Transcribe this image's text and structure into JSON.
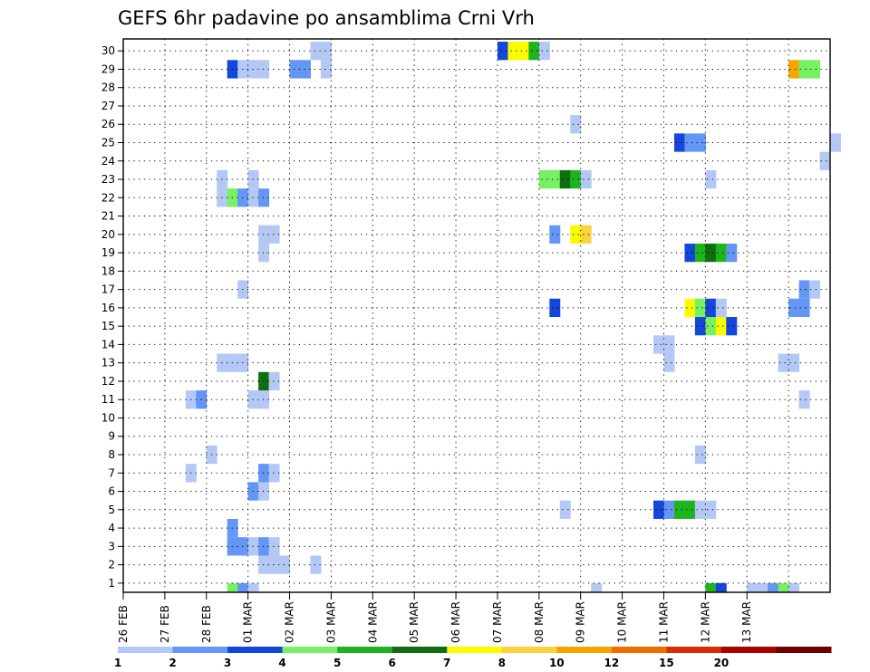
{
  "chart_data": {
    "type": "heatmap",
    "title": "GEFS 6hr padavine po ansamblima Crni Vrh",
    "xlabel": "",
    "ylabel": "",
    "x_ticks": [
      "26 FEB",
      "27 FEB",
      "28 FEB",
      "01 MAR",
      "02 MAR",
      "03 MAR",
      "04 MAR",
      "05 MAR",
      "06 MAR",
      "07 MAR",
      "08 MAR",
      "09 MAR",
      "10 MAR",
      "11 MAR",
      "12 MAR",
      "13 MAR"
    ],
    "y_ticks": [
      "1",
      "2",
      "3",
      "4",
      "5",
      "6",
      "7",
      "8",
      "9",
      "10",
      "11",
      "12",
      "13",
      "14",
      "15",
      "16",
      "17",
      "18",
      "19",
      "20",
      "21",
      "22",
      "23",
      "24",
      "25",
      "26",
      "27",
      "28",
      "29",
      "30"
    ],
    "grid": true,
    "legend": {
      "labels": [
        "1",
        "2",
        "3",
        "4",
        "5",
        "6",
        "7",
        "8",
        "10",
        "12",
        "15",
        "20"
      ],
      "colors": [
        "#b4c8f5",
        "#6496f5",
        "#1446dc",
        "#78f064",
        "#1eb41e",
        "#0f6e0f",
        "#fafa00",
        "#fad23c",
        "#f5a500",
        "#f06e00",
        "#dc2d00",
        "#aa0000",
        "#6e0000"
      ]
    },
    "cells": [
      [
        28.5,
        0,
        3,
        "#78f064"
      ],
      [
        28.75,
        0,
        3,
        "#6496f5"
      ],
      [
        29.0,
        0,
        3,
        "#b4c8f5"
      ],
      [
        29.25,
        1,
        2,
        "#b4c8f5"
      ],
      [
        29.5,
        1,
        2,
        "#b4c8f5"
      ],
      [
        29.75,
        1,
        2,
        "#b4c8f5"
      ],
      [
        30.5,
        1,
        2,
        "#b4c8f5"
      ],
      [
        28.5,
        2,
        2,
        "#6496f5"
      ],
      [
        28.75,
        2,
        2,
        "#6496f5"
      ],
      [
        29.0,
        2,
        2,
        "#b4c8f5"
      ],
      [
        29.25,
        2,
        2,
        "#6496f5"
      ],
      [
        29.5,
        2,
        2,
        "#b4c8f5"
      ],
      [
        28.5,
        3,
        2,
        "#6496f5"
      ],
      [
        38.75,
        4,
        3,
        "#1446dc"
      ],
      [
        39.0,
        4,
        3,
        "#6496f5"
      ],
      [
        39.25,
        4,
        3,
        "#1eb41e"
      ],
      [
        39.5,
        4,
        3,
        "#1eb41e"
      ],
      [
        39.75,
        4,
        3,
        "#b4c8f5"
      ],
      [
        40.0,
        4,
        3,
        "#b4c8f5"
      ],
      [
        36.5,
        4,
        3,
        "#b4c8f5"
      ],
      [
        29.0,
        5,
        2,
        "#6496f5"
      ],
      [
        29.25,
        5,
        2,
        "#b4c8f5"
      ],
      [
        27.5,
        6,
        2,
        "#b4c8f5"
      ],
      [
        29.25,
        6,
        2,
        "#6496f5"
      ],
      [
        29.5,
        6,
        2,
        "#b4c8f5"
      ],
      [
        28.0,
        7,
        2,
        "#b4c8f5"
      ],
      [
        39.75,
        7,
        2,
        "#b4c8f5"
      ],
      [
        27.5,
        10,
        2,
        "#b4c8f5"
      ],
      [
        27.75,
        10,
        2,
        "#6496f5"
      ],
      [
        29.0,
        10,
        2,
        "#b4c8f5"
      ],
      [
        29.25,
        10,
        2,
        "#b4c8f5"
      ],
      [
        42.25,
        10,
        2,
        "#b4c8f5"
      ],
      [
        29.25,
        11,
        2,
        "#0f6e0f"
      ],
      [
        29.5,
        11,
        2,
        "#b4c8f5"
      ],
      [
        28.25,
        12,
        2,
        "#b4c8f5"
      ],
      [
        28.5,
        12,
        2,
        "#b4c8f5"
      ],
      [
        28.75,
        12,
        2,
        "#b4c8f5"
      ],
      [
        39.0,
        12,
        2,
        "#b4c8f5"
      ],
      [
        41.75,
        12,
        2,
        "#b4c8f5"
      ],
      [
        42.0,
        12,
        2,
        "#b4c8f5"
      ],
      [
        38.75,
        13,
        3,
        "#b4c8f5"
      ],
      [
        39.0,
        13,
        3,
        "#b4c8f5"
      ],
      [
        39.75,
        14,
        2,
        "#1446dc"
      ],
      [
        40.0,
        14,
        2,
        "#78f064"
      ],
      [
        40.25,
        14,
        2,
        "#fafa00"
      ],
      [
        40.5,
        14,
        2,
        "#1446dc"
      ],
      [
        36.25,
        15,
        2,
        "#1446dc"
      ],
      [
        39.5,
        15,
        2,
        "#fafa00"
      ],
      [
        39.75,
        15,
        2,
        "#78f064"
      ],
      [
        40.0,
        15,
        2,
        "#1446dc"
      ],
      [
        40.25,
        15,
        2,
        "#b4c8f5"
      ],
      [
        42.0,
        15,
        2,
        "#6496f5"
      ],
      [
        42.25,
        15,
        2,
        "#6496f5"
      ],
      [
        28.75,
        16,
        2,
        "#b4c8f5"
      ],
      [
        42.25,
        16,
        2,
        "#6496f5"
      ],
      [
        42.5,
        16,
        2,
        "#b4c8f5"
      ],
      [
        29.25,
        18,
        2,
        "#b4c8f5"
      ],
      [
        39.5,
        18,
        2,
        "#1446dc"
      ],
      [
        39.75,
        18,
        2,
        "#1eb41e"
      ],
      [
        40.0,
        18,
        2,
        "#0f6e0f"
      ],
      [
        40.25,
        18,
        2,
        "#1eb41e"
      ],
      [
        40.5,
        18,
        2,
        "#6496f5"
      ],
      [
        29.25,
        19,
        2,
        "#b4c8f5"
      ],
      [
        29.5,
        19,
        2,
        "#b4c8f5"
      ],
      [
        36.25,
        19,
        2,
        "#6496f5"
      ],
      [
        36.75,
        19,
        2,
        "#fafa00"
      ],
      [
        37.0,
        19,
        2,
        "#fad23c"
      ],
      [
        28.25,
        21,
        2,
        "#b4c8f5"
      ],
      [
        28.5,
        21,
        2,
        "#78f064"
      ],
      [
        28.75,
        21,
        2,
        "#6496f5"
      ],
      [
        29.0,
        21,
        2,
        "#b4c8f5"
      ],
      [
        29.25,
        21,
        2,
        "#6496f5"
      ],
      [
        28.25,
        22,
        2,
        "#b4c8f5"
      ],
      [
        29.0,
        22,
        2,
        "#b4c8f5"
      ],
      [
        36.0,
        22,
        2,
        "#78f064"
      ],
      [
        36.25,
        22,
        2,
        "#78f064"
      ],
      [
        36.5,
        22,
        2,
        "#0f6e0f"
      ],
      [
        36.75,
        22,
        2,
        "#1eb41e"
      ],
      [
        37.0,
        22,
        2,
        "#b4c8f5"
      ],
      [
        40.0,
        22,
        2,
        "#b4c8f5"
      ],
      [
        42.75,
        23,
        2,
        "#b4c8f5"
      ],
      [
        39.25,
        24,
        2,
        "#1446dc"
      ],
      [
        39.5,
        24,
        2,
        "#6496f5"
      ],
      [
        39.75,
        24,
        2,
        "#6496f5"
      ],
      [
        43.0,
        24,
        2,
        "#b4c8f5"
      ],
      [
        36.75,
        25,
        2,
        "#b4c8f5"
      ],
      [
        28.5,
        28,
        2,
        "#1446dc"
      ],
      [
        28.75,
        28,
        2,
        "#b4c8f5"
      ],
      [
        29.0,
        28,
        2,
        "#b4c8f5"
      ],
      [
        29.25,
        28,
        2,
        "#b4c8f5"
      ],
      [
        30.0,
        28,
        2,
        "#6496f5"
      ],
      [
        30.25,
        28,
        2,
        "#6496f5"
      ],
      [
        30.75,
        28,
        2,
        "#b4c8f5"
      ],
      [
        42.0,
        28,
        2,
        "#f5a500"
      ],
      [
        42.25,
        28,
        2,
        "#78f064"
      ],
      [
        42.5,
        28,
        2,
        "#78f064"
      ],
      [
        30.5,
        29,
        2,
        "#b4c8f5"
      ],
      [
        30.75,
        29,
        2,
        "#b4c8f5"
      ],
      [
        35.0,
        29,
        2,
        "#1446dc"
      ],
      [
        35.25,
        29,
        2,
        "#fafa00"
      ],
      [
        35.5,
        29,
        2,
        "#fafa00"
      ],
      [
        35.75,
        29,
        2,
        "#1eb41e"
      ],
      [
        36.0,
        29,
        2,
        "#b4c8f5"
      ],
      [
        37.25,
        0,
        3,
        "#b4c8f5"
      ],
      [
        40.0,
        0,
        3,
        "#1eb41e"
      ],
      [
        40.25,
        0,
        3,
        "#1446dc"
      ],
      [
        41.0,
        0,
        3,
        "#b4c8f5"
      ],
      [
        41.25,
        0,
        3,
        "#b4c8f5"
      ],
      [
        41.5,
        0,
        3,
        "#6496f5"
      ],
      [
        41.75,
        0,
        3,
        "#78f064"
      ],
      [
        42.0,
        0,
        3,
        "#b4c8f5"
      ]
    ]
  }
}
